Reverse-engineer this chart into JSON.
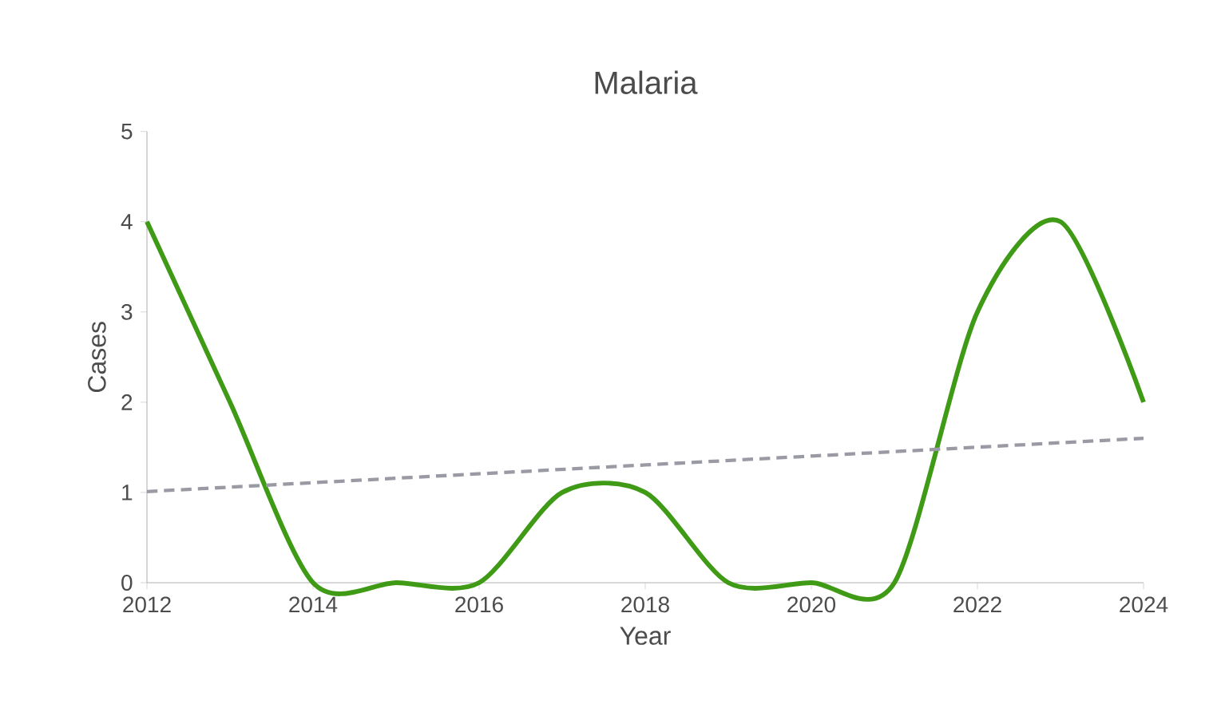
{
  "chart_data": {
    "type": "line",
    "title": "Malaria",
    "xlabel": "Year",
    "ylabel": "Cases",
    "x": [
      2012,
      2013,
      2014,
      2015,
      2016,
      2017,
      2018,
      2019,
      2020,
      2021,
      2022,
      2023,
      2024
    ],
    "series": [
      {
        "color": "#3f9a16",
        "values": [
          4,
          2,
          0,
          0,
          0,
          1,
          1,
          0,
          0,
          0,
          3,
          4,
          2
        ],
        "line_style": "solid"
      },
      {
        "type": "line",
        "color": "#9a9aa4",
        "x": [
          2012,
          2024
        ],
        "values": [
          1.01,
          1.6
        ],
        "line_style": "dashed"
      }
    ],
    "xlim": [
      2012,
      2024
    ],
    "xticks": [
      2012,
      2014,
      2016,
      2018,
      2020,
      2022,
      2024
    ],
    "ylim": [
      0,
      5
    ],
    "yticks": [
      0,
      1,
      2,
      3,
      4,
      5
    ],
    "grid": false,
    "marker": "none"
  }
}
